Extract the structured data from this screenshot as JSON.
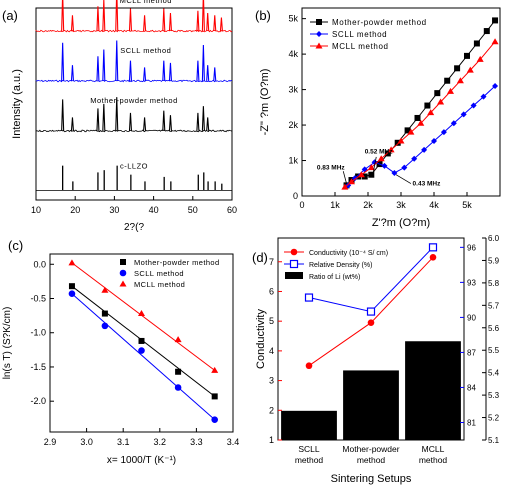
{
  "panels": {
    "a": {
      "label": "(a)"
    },
    "b": {
      "label": "(b)"
    },
    "c": {
      "label": "(c)"
    },
    "d": {
      "label": "(d)"
    }
  },
  "chart_data": [
    {
      "id": "a",
      "type": "line",
      "xlabel": "2?(?",
      "ylabel": "Intensity (a.u.)",
      "xlim": [
        10,
        60
      ],
      "xticks": [
        "10",
        "20",
        "30",
        "40",
        "50",
        "60"
      ],
      "series": [
        {
          "name": "MCLL method",
          "color": "#ff0000",
          "baseline": 0.88,
          "peaks": [
            [
              16.8,
              0.85
            ],
            [
              19.3,
              0.35
            ],
            [
              25.8,
              0.55
            ],
            [
              27.3,
              0.7
            ],
            [
              30.6,
              0.95
            ],
            [
              34.1,
              0.5
            ],
            [
              37.7,
              0.35
            ],
            [
              42.6,
              0.5
            ],
            [
              44.3,
              0.4
            ],
            [
              51.3,
              0.45
            ],
            [
              52.7,
              0.85
            ],
            [
              53.8,
              0.4
            ],
            [
              55.6,
              0.35
            ],
            [
              57.3,
              0.3
            ]
          ]
        },
        {
          "name": "SCLL method",
          "color": "#0000ff",
          "baseline": 0.62,
          "peaks": [
            [
              16.8,
              0.85
            ],
            [
              19.3,
              0.35
            ],
            [
              25.8,
              0.55
            ],
            [
              27.3,
              0.7
            ],
            [
              30.6,
              0.9
            ],
            [
              34.1,
              0.45
            ],
            [
              37.7,
              0.3
            ],
            [
              42.6,
              0.45
            ],
            [
              44.3,
              0.4
            ],
            [
              51.3,
              0.45
            ],
            [
              52.7,
              0.8
            ],
            [
              53.8,
              0.35
            ],
            [
              55.6,
              0.3
            ]
          ]
        },
        {
          "name": "Mother-powder method",
          "color": "#000000",
          "baseline": 0.36,
          "peaks": [
            [
              16.8,
              0.7
            ],
            [
              19.3,
              0.3
            ],
            [
              25.8,
              0.5
            ],
            [
              27.3,
              0.6
            ],
            [
              30.6,
              0.75
            ],
            [
              34.1,
              0.4
            ],
            [
              37.7,
              0.3
            ],
            [
              42.6,
              0.45
            ],
            [
              44.3,
              0.35
            ],
            [
              51.3,
              0.4
            ],
            [
              52.7,
              0.55
            ],
            [
              53.8,
              0.3
            ]
          ]
        },
        {
          "name": "c-LLZO",
          "color": "#000000",
          "baseline": 0.05,
          "type": "sticks",
          "peaks": [
            [
              16.8,
              0.55
            ],
            [
              19.4,
              0.2
            ],
            [
              25.8,
              0.4
            ],
            [
              27.4,
              0.45
            ],
            [
              30.7,
              0.55
            ],
            [
              34.2,
              0.35
            ],
            [
              37.8,
              0.2
            ],
            [
              42.7,
              0.3
            ],
            [
              44.4,
              0.2
            ],
            [
              51.4,
              0.35
            ],
            [
              52.8,
              0.4
            ],
            [
              53.9,
              0.2
            ],
            [
              55.7,
              0.2
            ],
            [
              57.4,
              0.15
            ]
          ]
        }
      ]
    },
    {
      "id": "b",
      "type": "line",
      "xlabel": "Z'?m (O?m)",
      "ylabel": "-Z\" ?m (O?m)",
      "xlim": [
        0,
        6
      ],
      "ylim": [
        0,
        5.3
      ],
      "xticks": [
        "0",
        "1k",
        "2k",
        "3k",
        "4k",
        "5k"
      ],
      "yticks": [
        "0",
        "1k",
        "2k",
        "3k",
        "4k",
        "5k"
      ],
      "legend_position": "top-left",
      "annotations": [
        "0.83 MHz",
        "0.52 MHz",
        "0.43 MHz"
      ],
      "series": [
        {
          "name": "Mother-powder method",
          "color": "#000000",
          "marker": "square",
          "x": [
            1.35,
            1.5,
            1.7,
            1.9,
            2.1,
            2.35,
            2.6,
            2.9,
            3.2,
            3.5,
            3.8,
            4.1,
            4.4,
            4.7,
            5.0,
            5.3,
            5.6,
            5.85
          ],
          "y": [
            0.3,
            0.45,
            0.55,
            0.55,
            0.6,
            0.9,
            1.2,
            1.5,
            1.85,
            2.2,
            2.55,
            2.9,
            3.25,
            3.6,
            3.95,
            4.3,
            4.65,
            4.95
          ]
        },
        {
          "name": "SCLL method",
          "color": "#0000ff",
          "marker": "diamond",
          "x": [
            1.4,
            1.6,
            1.9,
            2.2,
            2.5,
            2.8,
            3.1,
            3.4,
            3.7,
            4.0,
            4.3,
            4.6,
            4.9,
            5.2,
            5.5,
            5.85
          ],
          "y": [
            0.3,
            0.5,
            0.75,
            0.95,
            0.85,
            0.65,
            0.8,
            1.05,
            1.3,
            1.55,
            1.8,
            2.05,
            2.3,
            2.55,
            2.8,
            3.1
          ]
        },
        {
          "name": "MCLL method",
          "color": "#ff0000",
          "marker": "triangle",
          "x": [
            1.3,
            1.5,
            1.8,
            2.1,
            2.4,
            2.7,
            3.0,
            3.3,
            3.6,
            3.9,
            4.2,
            4.5,
            4.8,
            5.1,
            5.4,
            5.85
          ],
          "y": [
            0.25,
            0.4,
            0.6,
            0.8,
            1.05,
            1.3,
            1.55,
            1.8,
            2.05,
            2.35,
            2.65,
            2.95,
            3.25,
            3.55,
            3.85,
            4.35
          ]
        }
      ]
    },
    {
      "id": "c",
      "type": "scatter",
      "xlabel": "x= 1000/T (K⁻¹)",
      "ylabel": "ln(s T) (S?K/cm)",
      "xlim": [
        2.9,
        3.4
      ],
      "ylim": [
        -2.45,
        0.15
      ],
      "xticks": [
        "2.9",
        "3.0",
        "3.1",
        "3.2",
        "3.3",
        "3.4"
      ],
      "yticks": [
        "0.0",
        "-0.5",
        "-1.0",
        "-1.5",
        "-2.0"
      ],
      "legend_position": "top-right",
      "series": [
        {
          "name": "Mother-powder method",
          "color": "#000000",
          "marker": "square",
          "x": [
            2.96,
            3.05,
            3.15,
            3.25,
            3.35
          ],
          "y": [
            -0.32,
            -0.72,
            -1.12,
            -1.57,
            -1.93
          ]
        },
        {
          "name": "SCLL method",
          "color": "#0000ff",
          "marker": "circle",
          "x": [
            2.96,
            3.05,
            3.15,
            3.25,
            3.35
          ],
          "y": [
            -0.43,
            -0.9,
            -1.26,
            -1.8,
            -2.27
          ]
        },
        {
          "name": "MCLL method",
          "color": "#ff0000",
          "marker": "triangle",
          "x": [
            2.96,
            3.05,
            3.15,
            3.25,
            3.35
          ],
          "y": [
            0.02,
            -0.38,
            -0.72,
            -1.1,
            -1.55
          ]
        }
      ]
    },
    {
      "id": "d",
      "type": "bar",
      "xlabel": "Sintering Setups",
      "categories": [
        "SCLL\nmethod",
        "Mother-powder\nmethod",
        "MCLL\nmethod"
      ],
      "ylabel_left": "Conductivity",
      "ylabel_right": "",
      "ylim_left": [
        1,
        7.8
      ],
      "yticks_left": [
        "1",
        "2",
        "3",
        "4",
        "5",
        "6",
        "7"
      ],
      "right_ticks_outer": [
        "5.1",
        "5.2",
        "5.3",
        "5.4",
        "5.5",
        "5.6",
        "5.7",
        "5.8",
        "5.9",
        "6.0"
      ],
      "right_lim_outer": [
        5.1,
        6.0
      ],
      "right_ticks_inner": [
        "81",
        "84",
        "87",
        "90",
        "93",
        "96"
      ],
      "right_lim_inner": [
        79.5,
        96.8
      ],
      "legend_position": "top-left",
      "series": [
        {
          "name": "Conductivity (10⁻⁴ S/ cm)",
          "color": "#ff0000",
          "marker": "circle",
          "axis": "left",
          "values": [
            3.5,
            4.95,
            7.15
          ]
        },
        {
          "name": "Relative Density (%)",
          "color": "#0000ff",
          "marker": "square-open",
          "axis": "inner",
          "values": [
            91.7,
            90.5,
            96.0
          ]
        },
        {
          "name": "Ratio of Li (wt%)",
          "color": "#000000",
          "type": "bar",
          "axis": "outer",
          "values": [
            5.23,
            5.41,
            5.54
          ]
        }
      ]
    }
  ]
}
